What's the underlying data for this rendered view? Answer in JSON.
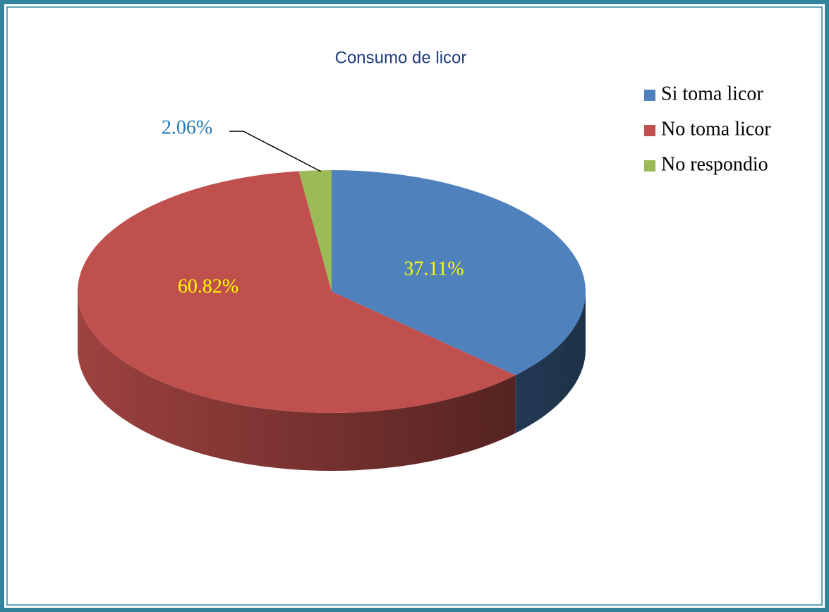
{
  "chart_data": {
    "type": "pie",
    "title": "Consumo de licor",
    "categories": [
      "Si toma licor",
      "No toma licor",
      "No respondio"
    ],
    "values": [
      37.11,
      60.82,
      2.06
    ],
    "value_labels": [
      "37.11%",
      "60.82%",
      "2.06%"
    ],
    "colors": [
      "#4f81bd",
      "#c0504d",
      "#9bbb59"
    ],
    "label_colors": [
      "#ffff00",
      "#ffff00",
      "#1f77b4"
    ],
    "legend": "right"
  }
}
